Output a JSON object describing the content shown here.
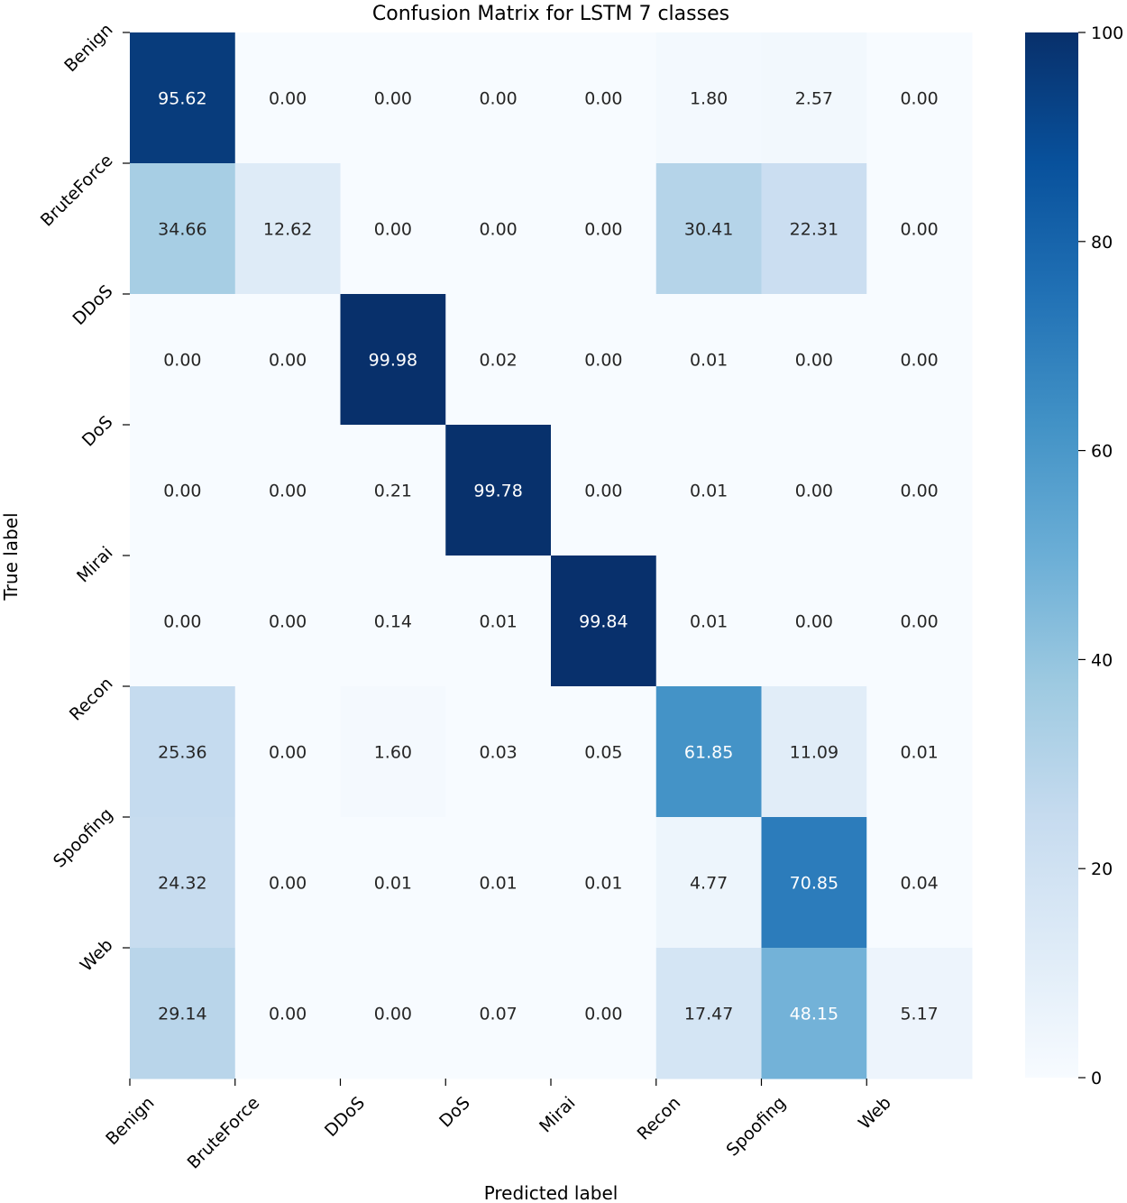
{
  "chart_data": {
    "type": "heatmap",
    "title": "Confusion Matrix for LSTM 7 classes",
    "xlabel": "Predicted label",
    "ylabel": "True label",
    "x_labels": [
      "Benign",
      "BruteForce",
      "DDoS",
      "DoS",
      "Mirai",
      "Recon",
      "Spoofing",
      "Web"
    ],
    "y_labels": [
      "Benign",
      "BruteForce",
      "DDoS",
      "DoS",
      "Mirai",
      "Recon",
      "Spoofing",
      "Web"
    ],
    "values": [
      [
        95.62,
        0.0,
        0.0,
        0.0,
        0.0,
        1.8,
        2.57,
        0.0
      ],
      [
        34.66,
        12.62,
        0.0,
        0.0,
        0.0,
        30.41,
        22.31,
        0.0
      ],
      [
        0.0,
        0.0,
        99.98,
        0.02,
        0.0,
        0.01,
        0.0,
        0.0
      ],
      [
        0.0,
        0.0,
        0.21,
        99.78,
        0.0,
        0.01,
        0.0,
        0.0
      ],
      [
        0.0,
        0.0,
        0.14,
        0.01,
        99.84,
        0.01,
        0.0,
        0.0
      ],
      [
        25.36,
        0.0,
        1.6,
        0.03,
        0.05,
        61.85,
        11.09,
        0.01
      ],
      [
        24.32,
        0.0,
        0.01,
        0.01,
        0.01,
        4.77,
        70.85,
        0.04
      ],
      [
        29.14,
        0.0,
        0.0,
        0.07,
        0.0,
        17.47,
        48.15,
        5.17
      ]
    ],
    "colorbar": {
      "range": [
        0,
        100
      ],
      "ticks": [
        0,
        20,
        40,
        60,
        80,
        100
      ],
      "colormap": "Blues",
      "stops": [
        "#f7fbff",
        "#deebf7",
        "#c6dbef",
        "#9ecae1",
        "#6baed6",
        "#4292c6",
        "#2171b5",
        "#08519c",
        "#08306b"
      ]
    }
  }
}
